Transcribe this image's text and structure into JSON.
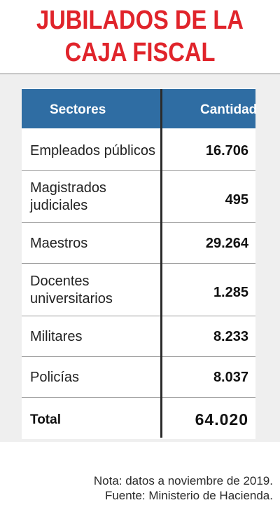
{
  "title": {
    "line1": "JUBILADOS DE LA",
    "line2": "CAJA FISCAL"
  },
  "colors": {
    "title": "#e0242b",
    "header_bg": "#2f6da3",
    "panel_bg": "#efefef"
  },
  "chart_data": {
    "type": "table",
    "title": "JUBILADOS DE LA CAJA FISCAL",
    "columns": [
      "Sectores",
      "Cantidad"
    ],
    "rows": [
      {
        "sector": [
          "Empleados públicos"
        ],
        "value": "16.706"
      },
      {
        "sector": [
          "Magistrados",
          "judiciales"
        ],
        "value": "495"
      },
      {
        "sector": [
          "Maestros"
        ],
        "value": "29.264"
      },
      {
        "sector": [
          "Docentes",
          "universitarios"
        ],
        "value": "1.285"
      },
      {
        "sector": [
          "Militares"
        ],
        "value": "8.233"
      },
      {
        "sector": [
          "Policías"
        ],
        "value": "8.037"
      }
    ],
    "total": {
      "label": "Total",
      "value": "64.020"
    }
  },
  "notes": {
    "nota": "Nota: datos a noviembre de 2019.",
    "fuente": "Fuente: Ministerio de Hacienda."
  }
}
